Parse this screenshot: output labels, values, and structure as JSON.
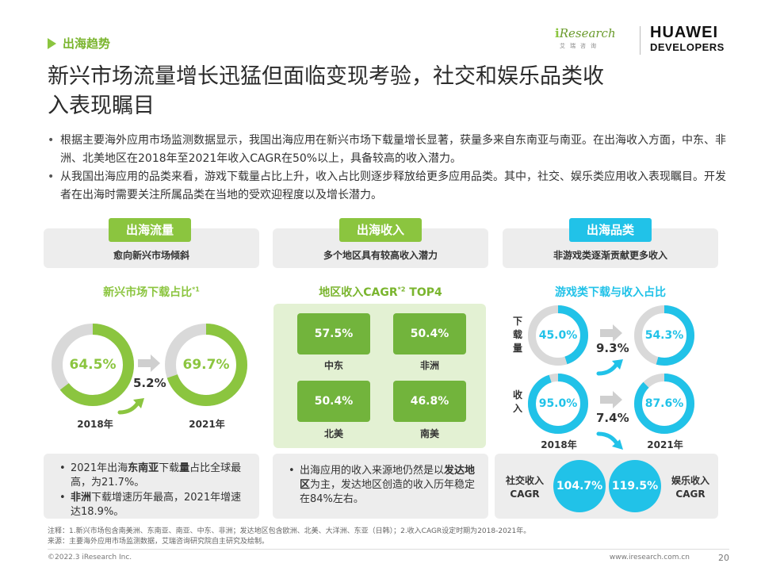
{
  "header": {
    "section_tag": "出海趋势",
    "title": "新兴市场流量增长迅猛但面临变现考验，社交和娱乐品类收入表现瞩目",
    "logo_ir_word_pre": "i",
    "logo_ir_word": "Research",
    "logo_ir_sub": "艾瑞咨询",
    "logo_hw_line1": "HUAWEI",
    "logo_hw_line2": "DEVELOPERS"
  },
  "bullets": [
    "根据主要海外应用市场监测数据显示，我国出海应用在新兴市场下载量增长显著，获量多来自东南亚与南亚。在出海收入方面，中东、非洲、北美地区在2018年至2021年收入CAGR在50%以上，具备较高的收入潜力。",
    "从我国出海应用的品类来看，游戏下载量占比上升，收入占比则逐步释放给更多应用品类。其中，社交、娱乐类应用收入表现瞩目。开发者在出海时需要关注所属品类在当地的受欢迎程度以及增长潜力。"
  ],
  "colors": {
    "green": "#8bc53f",
    "green_dark": "#72b43c",
    "cyan": "#21c2e8",
    "gray_ring": "#d9d9d9"
  },
  "traffic": {
    "pill": "出海流量",
    "subtitle": "愈向新兴市场倾斜",
    "chart_title": "新兴市场下载占比",
    "chart_title_sup": "*1",
    "donut_2018": {
      "value": 64.5,
      "label": "64.5%"
    },
    "donut_2021": {
      "value": 69.7,
      "label": "69.7%"
    },
    "delta": "5.2%",
    "year_2018": "2018年",
    "year_2021": "2021年",
    "notes": [
      {
        "pre": "2021年出海",
        "bold": "东南亚",
        "mid": "下载",
        "bold2": "量",
        "post": "占比全球最高，为21.7%。"
      },
      {
        "pre": "",
        "bold": "非洲",
        "mid": "下载增速历年最高，2021年增速达18.9%。",
        "bold2": "",
        "post": ""
      }
    ]
  },
  "revenue": {
    "pill": "出海收入",
    "subtitle": "多个地区具有较高收入潜力",
    "chart_title": "地区收入CAGR",
    "chart_title_sup": "*2",
    "chart_title_suffix": " TOP4",
    "tiles": [
      {
        "value": "57.5%",
        "label": "中东"
      },
      {
        "value": "50.4%",
        "label": "非洲"
      },
      {
        "value": "50.4%",
        "label": "北美"
      },
      {
        "value": "46.8%",
        "label": "南美"
      }
    ],
    "note_pre": "出海应用的收入来源地仍然是以",
    "note_bold": "发达地区",
    "note_post": "为主，发达地区创造的收入历年稳定在84%左右。"
  },
  "category": {
    "pill": "出海品类",
    "subtitle": "非游戏类逐渐贡献更多收入",
    "chart_title": "游戏类下载与收入占比",
    "row_download": "下载量",
    "row_revenue": "收入",
    "download_2018": {
      "value": 45.0,
      "label": "45.0%"
    },
    "download_2021": {
      "value": 54.3,
      "label": "54.3%"
    },
    "revenue_2018": {
      "value": 95.0,
      "label": "95.0%"
    },
    "revenue_2021": {
      "value": 87.6,
      "label": "87.6%"
    },
    "download_delta": "9.3%",
    "revenue_delta": "7.4%",
    "year_2018": "2018年",
    "year_2021": "2021年",
    "social_label_1": "社交收入",
    "social_label_2": "CAGR",
    "social_value": "104.7%",
    "ent_value": "119.5%",
    "ent_label_1": "娱乐收入",
    "ent_label_2": "CAGR"
  },
  "footnote_1": "注释：1.新兴市场包含南美洲、东南亚、南亚、中东、非洲；发达地区包含欧洲、北美、大洋洲、东亚（日韩）；2.收入CAGR设定时期为2018-2021年。",
  "footnote_2": "来源：主要海外应用市场监测数据，艾瑞咨询研究院自主研究及绘制。",
  "footer_left": "©2022.3 iResearch Inc.",
  "footer_right": "www.iresearch.com.cn",
  "page_number": "20"
}
